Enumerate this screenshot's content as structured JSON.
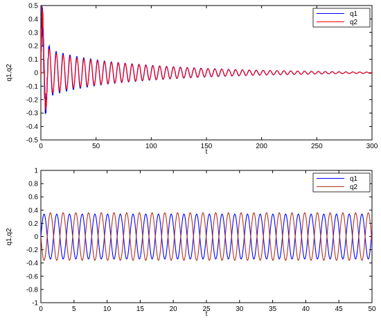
{
  "chart_data": [
    {
      "type": "line",
      "xlabel": "t",
      "ylabel": "q1,q2",
      "xlim": [
        0,
        300
      ],
      "ylim": [
        -0.5,
        0.5
      ],
      "xticks": [
        0,
        50,
        100,
        150,
        200,
        250,
        300
      ],
      "yticks": [
        -0.5,
        -0.4,
        -0.3,
        -0.2,
        -0.1,
        0,
        0.1,
        0.2,
        0.3,
        0.4,
        0.5
      ],
      "xtick_labels": [
        "0",
        "50",
        "100",
        "150",
        "200",
        "250",
        "300"
      ],
      "ytick_labels": [
        "-0.5",
        "-0.4",
        "-0.3",
        "-0.2",
        "-0.1",
        "0",
        "0.1",
        "0.2",
        "0.3",
        "0.4",
        "0.5"
      ],
      "legend": {
        "position": "top-right",
        "entries": [
          "q1",
          "q2"
        ]
      },
      "series": [
        {
          "name": "q1",
          "color": "#0000ff",
          "description": "decaying oscillation, period ~6.25, envelope ~0.17 at t=10 decaying to ~0.005 at t=300",
          "x": [
            0,
            1.5,
            3,
            4.5,
            6,
            7.5,
            9,
            10,
            15,
            20,
            25,
            30,
            40,
            50,
            60,
            75,
            100,
            125,
            150,
            175,
            200,
            225,
            250,
            275,
            300
          ],
          "envelope": [
            0.5,
            0.38,
            0.3,
            0.25,
            0.22,
            0.2,
            0.18,
            0.17,
            0.155,
            0.145,
            0.135,
            0.125,
            0.11,
            0.097,
            0.085,
            0.072,
            0.055,
            0.042,
            0.032,
            0.024,
            0.018,
            0.014,
            0.01,
            0.007,
            0.005
          ]
        },
        {
          "name": "q2",
          "color": "#ff0000",
          "description": "decaying oscillation, in phase with q1, slightly smaller envelope, large initial spike near t=0",
          "x": [
            0,
            1.5,
            3,
            4.5,
            6,
            7.5,
            9,
            10,
            15,
            20,
            25,
            30,
            40,
            50,
            60,
            75,
            100,
            125,
            150,
            175,
            200,
            225,
            250,
            275,
            300
          ],
          "envelope": [
            0.5,
            0.42,
            0.32,
            0.24,
            0.2,
            0.18,
            0.16,
            0.15,
            0.14,
            0.13,
            0.12,
            0.11,
            0.1,
            0.09,
            0.08,
            0.068,
            0.052,
            0.04,
            0.03,
            0.022,
            0.017,
            0.013,
            0.009,
            0.006,
            0.004
          ]
        }
      ]
    },
    {
      "type": "line",
      "xlabel": "t",
      "ylabel": "q1,q2",
      "xlim": [
        0,
        50
      ],
      "ylim": [
        -1,
        1
      ],
      "xticks": [
        0,
        5,
        10,
        15,
        20,
        25,
        30,
        35,
        40,
        45,
        50
      ],
      "yticks": [
        -1,
        -0.8,
        -0.6,
        -0.4,
        -0.2,
        0,
        0.2,
        0.4,
        0.6,
        0.8,
        1
      ],
      "xtick_labels": [
        "0",
        "5",
        "10",
        "15",
        "20",
        "25",
        "30",
        "35",
        "40",
        "45",
        "50"
      ],
      "ytick_labels": [
        "-1",
        "-0.8",
        "-0.6",
        "-0.4",
        "-0.2",
        "0",
        "0.2",
        "0.4",
        "0.6",
        "0.8",
        "1"
      ],
      "legend": {
        "position": "top-right",
        "entries": [
          "q1",
          "q2"
        ]
      },
      "series": [
        {
          "name": "q1",
          "color": "#0000ff",
          "description": "sustained oscillation, amplitude ~0.34, period ~1.92",
          "amplitude": 0.34,
          "period": 1.92,
          "phase_deg": 0
        },
        {
          "name": "q2",
          "color": "#b03020",
          "description": "sustained oscillation in anti-phase with q1, amplitude ~0.36, period ~1.92",
          "amplitude": 0.36,
          "period": 1.92,
          "phase_deg": 180
        }
      ]
    }
  ]
}
